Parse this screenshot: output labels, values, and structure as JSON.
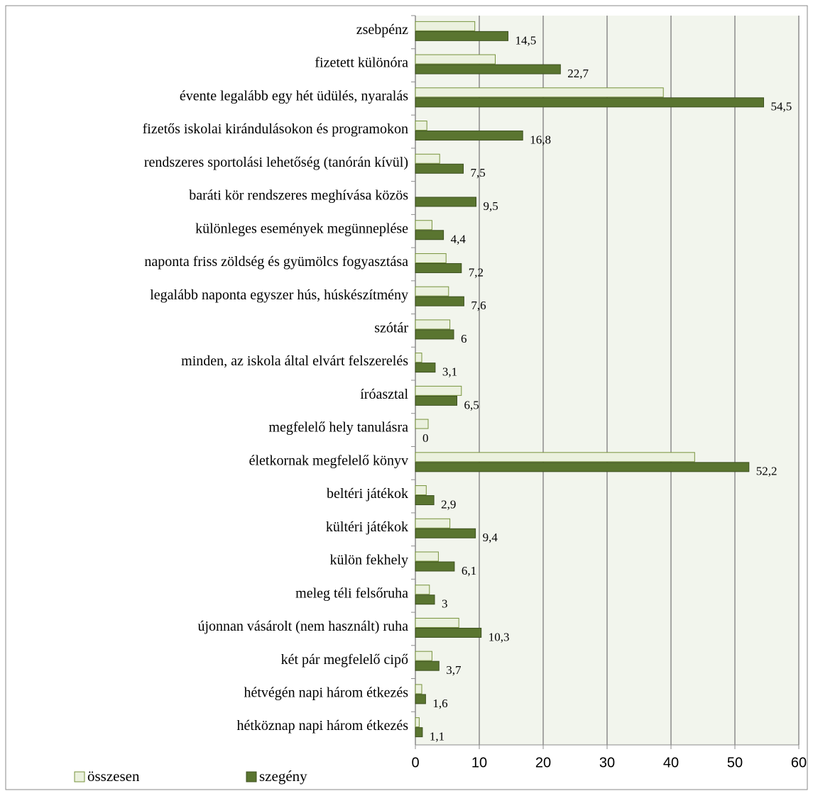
{
  "chart_data": {
    "type": "hbar",
    "categories": [
      "zsebpénz",
      "fizetett különóra",
      "évente legalább egy hét üdülés, nyaralás",
      "fizetős iskolai kirándulásokon és programokon",
      "rendszeres sportolási lehetőség (tanórán kívül)",
      "baráti kör rendszeres meghívása közös",
      "különleges események megünneplése",
      "naponta friss zöldség és gyümölcs fogyasztása",
      "legalább naponta egyszer hús, húskészítmény",
      "szótár",
      "minden, az iskola által elvárt felszerelés",
      "íróasztal",
      "megfelelő hely tanulásra",
      "életkornak megfelelő könyv",
      "beltéri játékok",
      "kültéri játékok",
      "külön fekhely",
      "meleg téli felsőruha",
      "újonnan vásárolt (nem használt) ruha",
      "két pár megfelelő cipő",
      "hétvégén napi három étkezés",
      "hétköznap napi három étkezés"
    ],
    "series": [
      {
        "name": "összesen",
        "color": "#ebf1de",
        "stroke": "#77933c",
        "values": [
          9.3,
          12.5,
          38.8,
          1.8,
          3.8,
          0,
          2.6,
          4.8,
          5.2,
          5.4,
          1.0,
          7.2,
          2.0,
          43.7,
          1.7,
          5.4,
          3.6,
          2.2,
          6.8,
          2.6,
          1.0,
          0.6
        ]
      },
      {
        "name": "szegény",
        "color": "#5a7530",
        "stroke": "#3d5020",
        "values": [
          14.5,
          22.7,
          54.5,
          16.8,
          7.5,
          9.5,
          4.4,
          7.2,
          7.6,
          6,
          3.1,
          6.5,
          0,
          52.2,
          2.9,
          9.4,
          6.1,
          3,
          10.3,
          3.7,
          1.6,
          1.1
        ],
        "value_labels": [
          "14,5",
          "22,7",
          "54,5",
          "16,8",
          "7,5",
          "9,5",
          "4,4",
          "7,2",
          "7,6",
          "6",
          "3,1",
          "6,5",
          "0",
          "52,2",
          "2,9",
          "9,4",
          "6,1",
          "3",
          "10,3",
          "3,7",
          "1,6",
          "1,1"
        ]
      }
    ],
    "xlim": [
      0,
      60
    ],
    "xticks": [
      0,
      10,
      20,
      30,
      40,
      50,
      60
    ],
    "grid": true,
    "legend": "bottom-left"
  }
}
